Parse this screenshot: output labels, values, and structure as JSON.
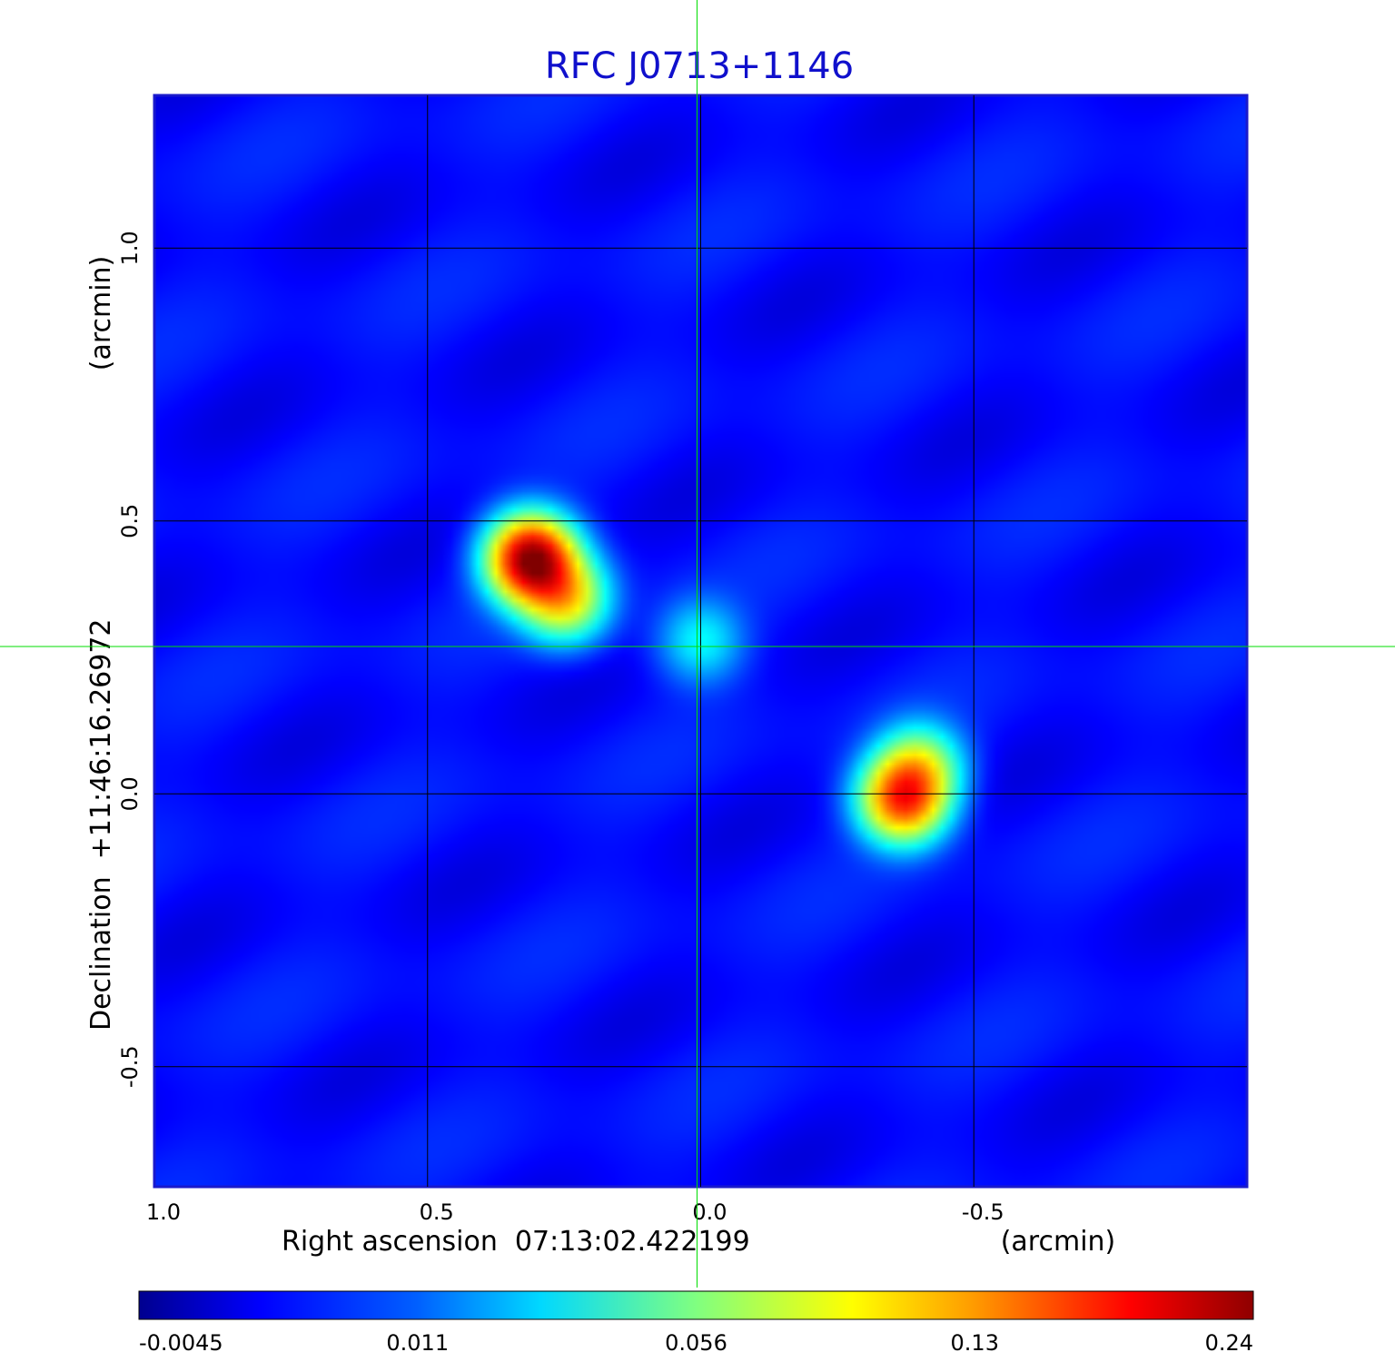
{
  "chart_data": {
    "type": "heatmap",
    "title": "RFC J0713+1146",
    "title_color": "#1010cc",
    "xlabel": "Right ascension  07:13:02.422199",
    "xunit": "(arcmin)",
    "ylabel": "Declination  +11:46:16.26972",
    "yunit": "(arcmin)",
    "xlim": [
      1.0,
      -1.0
    ],
    "ylim": [
      -0.72,
      1.28
    ],
    "x_ticks": [
      1.0,
      0.5,
      0.0,
      -0.5
    ],
    "x_tick_labels": [
      "1.0",
      "0.5",
      "0.0",
      "-0.5"
    ],
    "y_ticks": [
      1.0,
      0.5,
      0.0,
      -0.5
    ],
    "y_tick_labels": [
      "1.0",
      "0.5",
      "0.0",
      "-0.5"
    ],
    "grid": true,
    "crosshair": {
      "x": 0.0,
      "y": 0.27,
      "color": "#00dd00"
    },
    "colorscale": "jet",
    "colorbar": {
      "position": "bottom",
      "ticks": [
        -0.0045,
        0.011,
        0.056,
        0.13,
        0.24
      ],
      "tick_labels": [
        "-0.0045",
        "0.011",
        "0.056",
        "0.13",
        "0.24"
      ]
    },
    "background_level": 0.0,
    "sources": [
      {
        "x": 0.31,
        "y": 0.43,
        "peak": 0.24
      },
      {
        "x": 0.25,
        "y": 0.36,
        "peak": 0.1
      },
      {
        "x": -0.37,
        "y": -0.01,
        "peak": 0.16
      },
      {
        "x": -0.4,
        "y": 0.05,
        "peak": 0.07
      },
      {
        "x": 0.0,
        "y": 0.28,
        "peak": 0.03
      }
    ]
  }
}
